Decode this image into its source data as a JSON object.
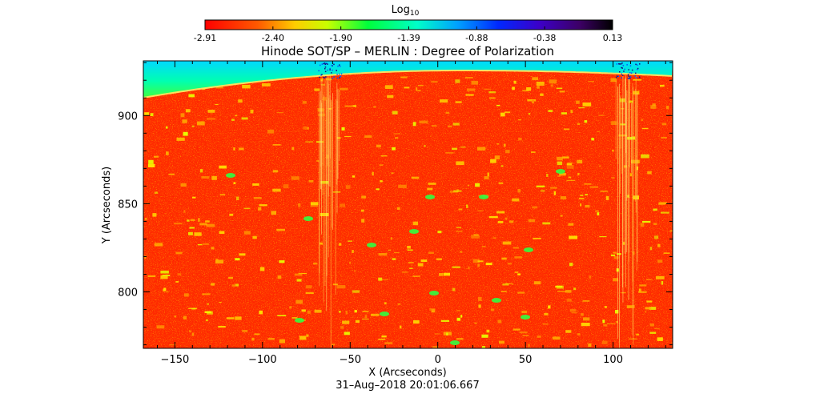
{
  "chart_data": {
    "type": "heatmap",
    "title": "Hinode SOT/SP – MERLIN : Degree of Polarization",
    "xlabel": "X (Arcseconds)",
    "ylabel": "Y (Arcseconds)",
    "date": "31–Aug–2018 20:01:06.667",
    "colorbar": {
      "label_main": "Log",
      "label_sub": "10",
      "ticks": [
        "-2.91",
        "-2.40",
        "-1.90",
        "-1.39",
        "-0.88",
        "-0.38",
        "0.13"
      ],
      "range": [
        -2.91,
        0.13
      ]
    },
    "xlim": [
      -168,
      134
    ],
    "ylim": [
      768,
      931
    ],
    "xticks": [
      -150,
      -100,
      -50,
      0,
      50,
      100
    ],
    "yticks": [
      800,
      850,
      900
    ],
    "scan_seams_x": [
      -62,
      108
    ]
  }
}
